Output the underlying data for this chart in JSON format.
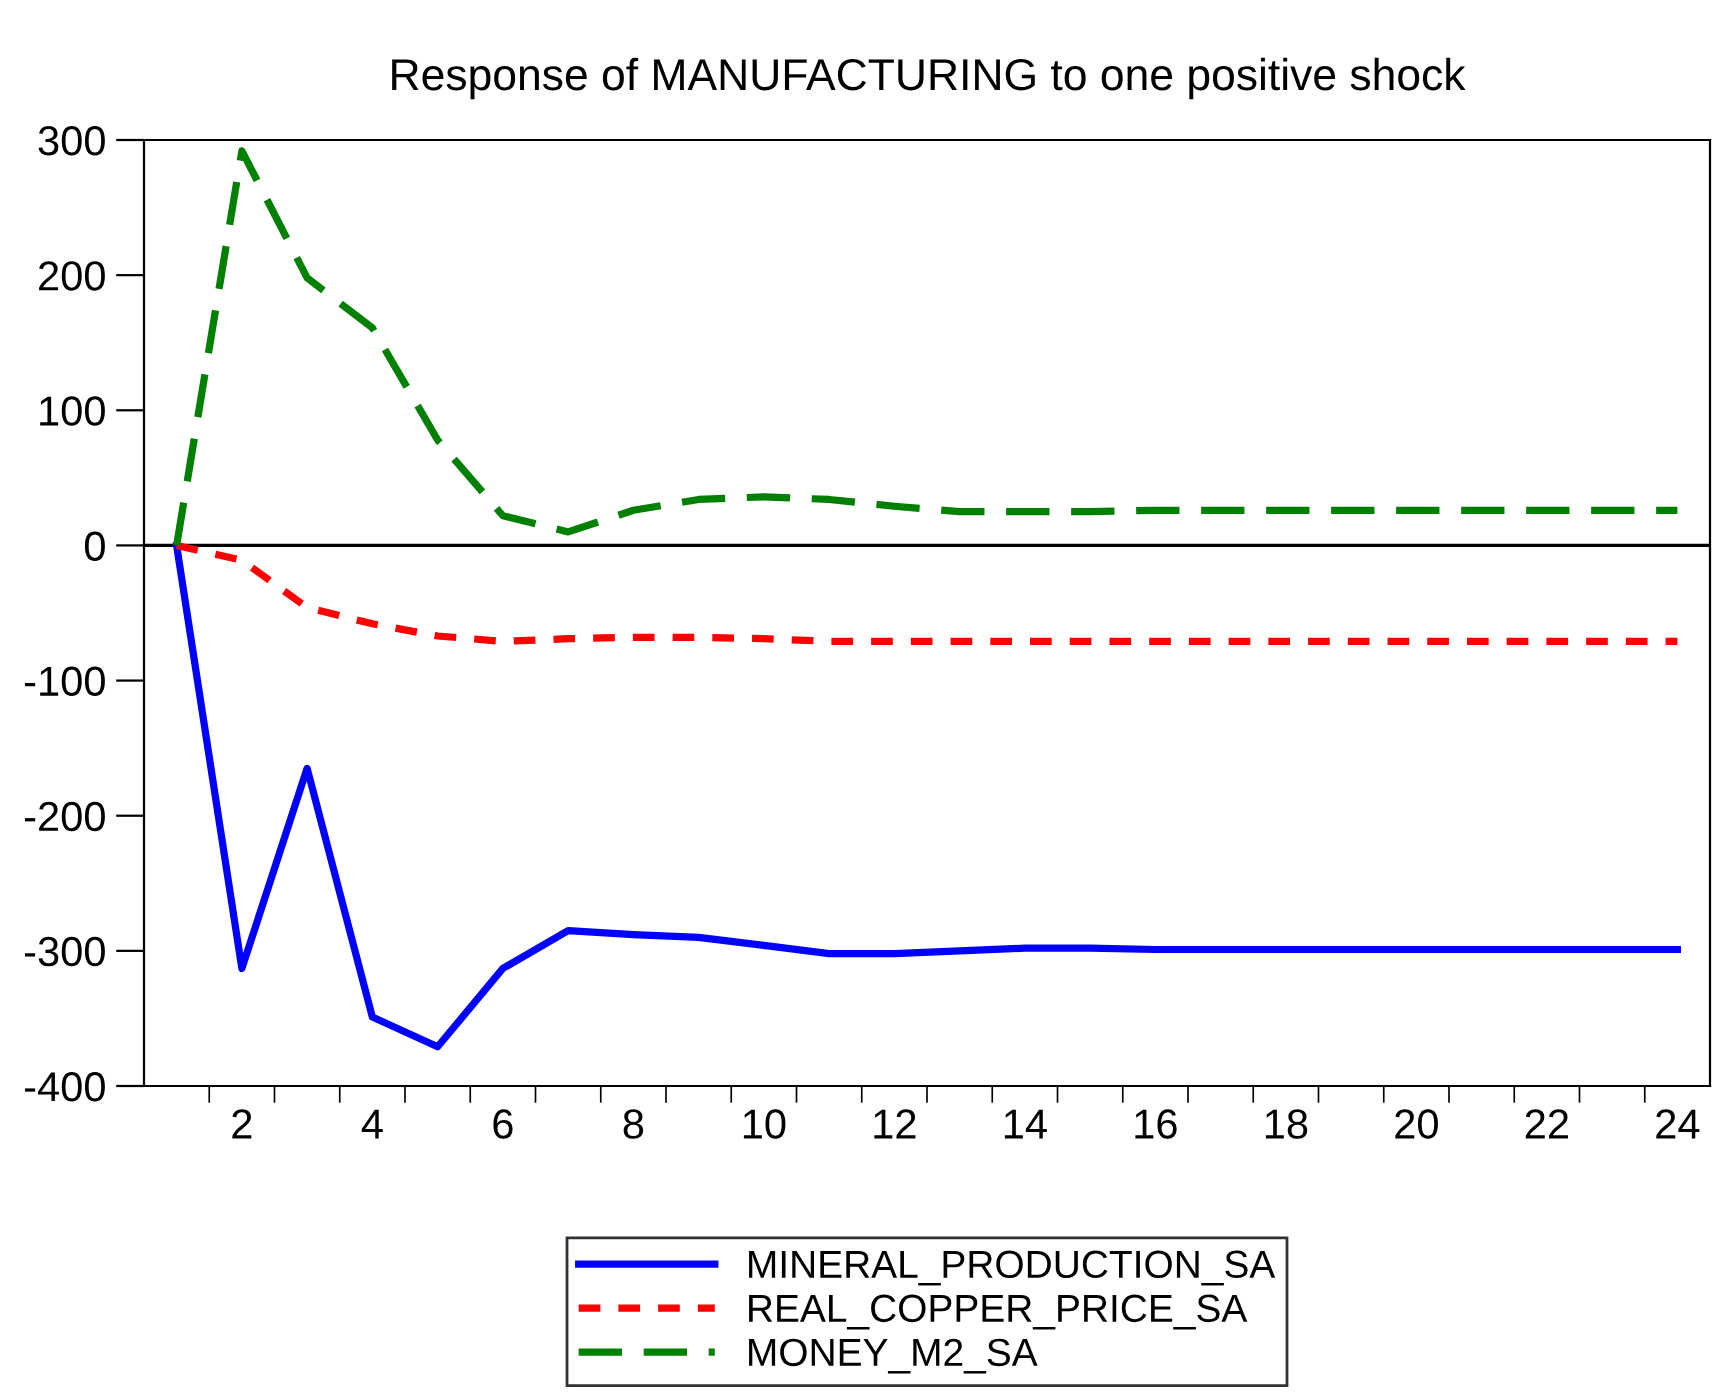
{
  "chart_data": {
    "type": "line",
    "title": "Response of MANUFACTURING to one positive shock",
    "x": [
      1,
      2,
      3,
      4,
      5,
      6,
      7,
      8,
      9,
      10,
      11,
      12,
      13,
      14,
      15,
      16,
      17,
      18,
      19,
      20,
      21,
      22,
      23,
      24
    ],
    "series": [
      {
        "name": "MINERAL_PRODUCTION_SA",
        "color": "#0000ff",
        "line_style": "solid",
        "values": [
          0,
          -313,
          -165,
          -349,
          -371,
          -313,
          -285,
          -288,
          -290,
          -296,
          -302,
          -302,
          -300,
          -298,
          -298,
          -299,
          -299,
          -299,
          -299,
          -299,
          -299,
          -299,
          -299,
          -299
        ]
      },
      {
        "name": "REAL_COPPER_PRICE_SA",
        "color": "#ff0000",
        "line_style": "dotted",
        "values": [
          0,
          -11,
          -46,
          -58,
          -67,
          -71,
          -69,
          -68,
          -68,
          -69,
          -71,
          -71,
          -71,
          -71,
          -71,
          -71,
          -71,
          -71,
          -71,
          -71,
          -71,
          -71,
          -71,
          -71
        ]
      },
      {
        "name": "MONEY_M2_SA",
        "color": "#008000",
        "line_style": "dashed",
        "values": [
          0,
          292,
          198,
          161,
          78,
          22,
          10,
          26,
          34,
          36,
          34,
          29,
          25,
          25,
          25,
          26,
          26,
          26,
          26,
          26,
          26,
          26,
          26,
          26
        ]
      }
    ],
    "xlim": [
      0.5,
      24.5
    ],
    "xticks": [
      {
        "value": 1.5,
        "label": null
      },
      2,
      {
        "value": 2.5,
        "label": null
      },
      {
        "value": 3.5,
        "label": null
      },
      4,
      {
        "value": 4.5,
        "label": null
      },
      {
        "value": 5.5,
        "label": null
      },
      6,
      {
        "value": 6.5,
        "label": null
      },
      {
        "value": 7.5,
        "label": null
      },
      8,
      {
        "value": 8.5,
        "label": null
      },
      {
        "value": 9.5,
        "label": null
      },
      10,
      {
        "value": 10.5,
        "label": null
      },
      {
        "value": 11.5,
        "label": null
      },
      12,
      {
        "value": 12.5,
        "label": null
      },
      {
        "value": 13.5,
        "label": null
      },
      14,
      {
        "value": 14.5,
        "label": null
      },
      {
        "value": 15.5,
        "label": null
      },
      16,
      {
        "value": 16.5,
        "label": null
      },
      {
        "value": 17.5,
        "label": null
      },
      18,
      {
        "value": 18.5,
        "label": null
      },
      {
        "value": 19.5,
        "label": null
      },
      20,
      {
        "value": 20.5,
        "label": null
      },
      {
        "value": 21.5,
        "label": null
      },
      22,
      {
        "value": 22.5,
        "label": null
      },
      {
        "value": 23.5,
        "label": null
      },
      24
    ],
    "ylim": [
      -400,
      300
    ],
    "yticks": [
      -400,
      -300,
      -200,
      -100,
      0,
      100,
      200,
      300
    ],
    "ref_lines": [
      {
        "axis": "y",
        "value": 0,
        "color": "#000000",
        "line_style": "solid"
      }
    ],
    "grid": false,
    "legend": "bottom"
  }
}
